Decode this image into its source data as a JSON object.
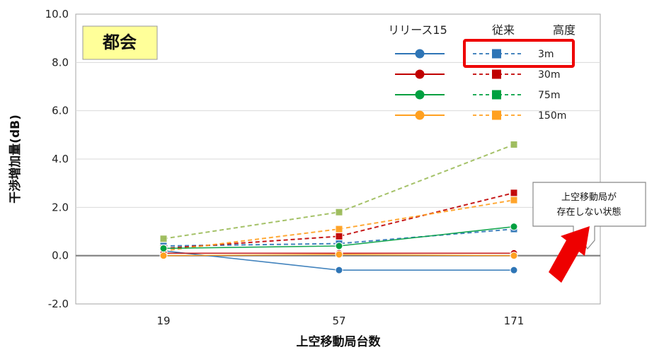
{
  "chart_data": {
    "type": "line",
    "region_label": "都会",
    "xlabel": "上空移動局台数",
    "ylabel": "干渉増加量(dB)",
    "categories": [
      "19",
      "57",
      "171"
    ],
    "ylim": [
      -2.0,
      10.0
    ],
    "yticks": [
      "10.0",
      "8.0",
      "6.0",
      "4.0",
      "2.0",
      "0.0",
      "-2.0"
    ],
    "legend_headers": {
      "release15": "リリース15",
      "legacy": "従来",
      "height": "高度"
    },
    "heights": [
      "3m",
      "30m",
      "75m",
      "150m"
    ],
    "callout_lines": [
      "上空移動局が",
      "存在しない状態"
    ],
    "colors": {
      "3m": "#2e75b6",
      "30m": "#c00000",
      "75m": "#00a040",
      "150m": "#ffa020",
      "upper": "#9bbb59",
      "highlight": "#ee0000",
      "baseline": "#7f7f7f"
    },
    "series": [
      {
        "group": "release15",
        "height": "3m",
        "color_key": "3m",
        "values": [
          0.2,
          -0.6,
          -0.6
        ]
      },
      {
        "group": "release15",
        "height": "30m",
        "color_key": "30m",
        "values": [
          0.1,
          0.1,
          0.1
        ]
      },
      {
        "group": "release15",
        "height": "75m",
        "color_key": "75m",
        "values": [
          0.3,
          0.4,
          1.2
        ]
      },
      {
        "group": "release15",
        "height": "150m",
        "color_key": "150m",
        "values": [
          0.0,
          0.05,
          0.0
        ]
      },
      {
        "group": "legacy",
        "height": "3m",
        "color_key": "3m",
        "values": [
          0.4,
          0.5,
          1.1
        ]
      },
      {
        "group": "legacy",
        "height": "30m",
        "color_key": "30m",
        "values": [
          0.3,
          0.8,
          2.6
        ]
      },
      {
        "group": "legacy",
        "height": "75m",
        "color_key": "upper",
        "values": [
          0.7,
          1.8,
          4.6
        ]
      },
      {
        "group": "legacy",
        "height": "150m",
        "color_key": "150m",
        "values": [
          0.2,
          1.1,
          2.3
        ]
      }
    ]
  }
}
